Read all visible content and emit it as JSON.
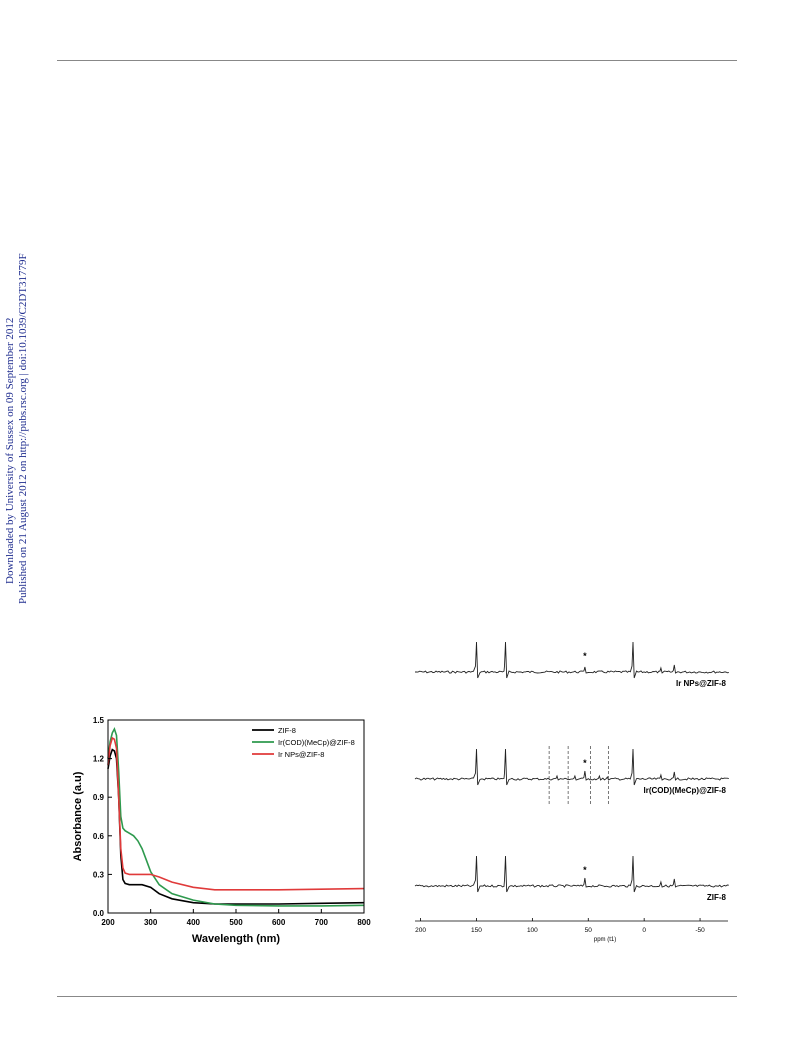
{
  "page": {
    "sidebar": {
      "downloaded_line": "Downloaded by University of Sussex on 09 September 2012",
      "published_line": "Published on 21 August 2012 on http://pubs.rsc.org | doi:10.1039/C2DT31779F",
      "color": "#1f2d8f"
    }
  },
  "chart_data": [
    {
      "type": "line",
      "xlabel": "Wavelength (nm)",
      "ylabel": "Absorbance (a.u)",
      "xlim": [
        200,
        800
      ],
      "ylim": [
        0.0,
        1.5
      ],
      "xticks": [
        200,
        300,
        400,
        500,
        600,
        700,
        800
      ],
      "yticks": [
        "0.0",
        "0.3",
        "0.6",
        "0.9",
        "1.2",
        "1.5"
      ],
      "legend_position": "top-right",
      "series": [
        {
          "name": "ZIF-8",
          "color": "#000000",
          "x": [
            200,
            205,
            210,
            215,
            220,
            225,
            230,
            235,
            240,
            250,
            260,
            280,
            300,
            320,
            350,
            400,
            450,
            500,
            600,
            700,
            800
          ],
          "y": [
            1.12,
            1.22,
            1.27,
            1.26,
            1.2,
            0.9,
            0.45,
            0.26,
            0.23,
            0.22,
            0.22,
            0.22,
            0.2,
            0.15,
            0.11,
            0.08,
            0.07,
            0.07,
            0.07,
            0.075,
            0.08
          ]
        },
        {
          "name": "Ir(COD)(MeCp)@ZIF-8",
          "color": "#2e9a4e",
          "x": [
            200,
            205,
            210,
            215,
            220,
            225,
            230,
            235,
            240,
            250,
            260,
            270,
            280,
            290,
            300,
            320,
            350,
            400,
            450,
            500,
            600,
            700,
            800
          ],
          "y": [
            1.2,
            1.33,
            1.4,
            1.43,
            1.38,
            1.1,
            0.75,
            0.66,
            0.64,
            0.62,
            0.6,
            0.56,
            0.5,
            0.41,
            0.32,
            0.22,
            0.15,
            0.1,
            0.07,
            0.06,
            0.055,
            0.055,
            0.06
          ]
        },
        {
          "name": "Ir NPs@ZIF-8",
          "color": "#e03a3a",
          "x": [
            200,
            205,
            210,
            215,
            220,
            225,
            230,
            235,
            240,
            250,
            260,
            280,
            300,
            320,
            350,
            400,
            450,
            500,
            600,
            700,
            800
          ],
          "y": [
            1.15,
            1.3,
            1.36,
            1.35,
            1.28,
            0.9,
            0.5,
            0.35,
            0.31,
            0.3,
            0.3,
            0.3,
            0.3,
            0.28,
            0.24,
            0.2,
            0.18,
            0.18,
            0.18,
            0.185,
            0.19
          ]
        }
      ]
    },
    {
      "type": "line",
      "xlabel": "ppm (t1)",
      "x_reversed": true,
      "xlim": [
        205,
        -75
      ],
      "xticks": [
        200,
        150,
        100,
        50,
        0,
        -50
      ],
      "peak_positions_ppm": [
        150,
        124,
        53,
        10,
        -15,
        -27
      ],
      "dashed_line_positions_ppm": [
        85,
        68,
        48,
        32
      ],
      "asterisk_ppm": 53,
      "asterisk_label": "*",
      "series": [
        {
          "name": "Ir NPs@ZIF-8",
          "peak_heights": [
            30,
            30,
            5,
            30,
            4,
            7
          ]
        },
        {
          "name": "Ir(COD)(MeCp)@ZIF-8",
          "peak_heights": [
            30,
            30,
            8,
            30,
            4,
            7
          ],
          "extra_peaks_ppm": [
            78,
            62,
            40,
            33
          ],
          "extra_peak_heights": [
            3,
            3,
            3,
            2
          ]
        },
        {
          "name": "ZIF-8",
          "peak_heights": [
            30,
            30,
            8,
            30,
            4,
            7
          ]
        }
      ]
    }
  ]
}
